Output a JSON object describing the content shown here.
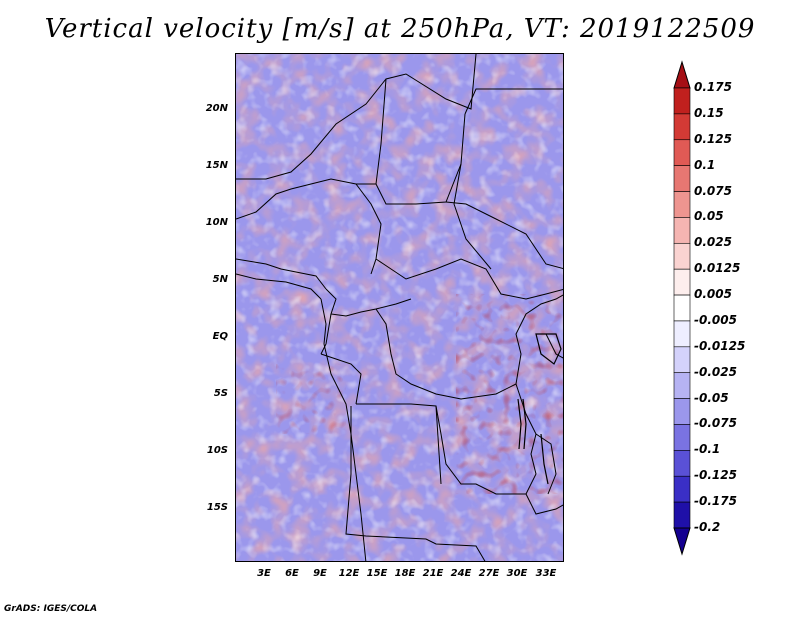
{
  "title": "Vertical velocity [m/s] at 250hPa, VT: 2019122509",
  "credit": "GrADS: IGES/COLA",
  "lat_labels": [
    "20N",
    "15N",
    "10N",
    "5N",
    "EQ",
    "5S",
    "10S",
    "15S"
  ],
  "lon_labels": [
    "3E",
    "6E",
    "9E",
    "12E",
    "15E",
    "18E",
    "21E",
    "24E",
    "27E",
    "30E",
    "33E"
  ],
  "colorbar": {
    "labels": [
      "0.175",
      "0.15",
      "0.125",
      "0.1",
      "0.075",
      "0.05",
      "0.025",
      "0.0125",
      "0.005",
      "-0.005",
      "-0.0125",
      "-0.025",
      "-0.05",
      "-0.075",
      "-0.1",
      "-0.125",
      "-0.175",
      "-0.2"
    ],
    "colors": [
      "#a50f15",
      "#c0201e",
      "#d33a35",
      "#e05a55",
      "#e77772",
      "#ee9590",
      "#f5b5b2",
      "#fad3d1",
      "#fdeeed",
      "#ffffff",
      "#eeeeff",
      "#d4d2fb",
      "#b6b3f3",
      "#9b97ec",
      "#7a73e2",
      "#5a51d6",
      "#3a2fc6",
      "#1f10a8",
      "#140090"
    ]
  }
}
